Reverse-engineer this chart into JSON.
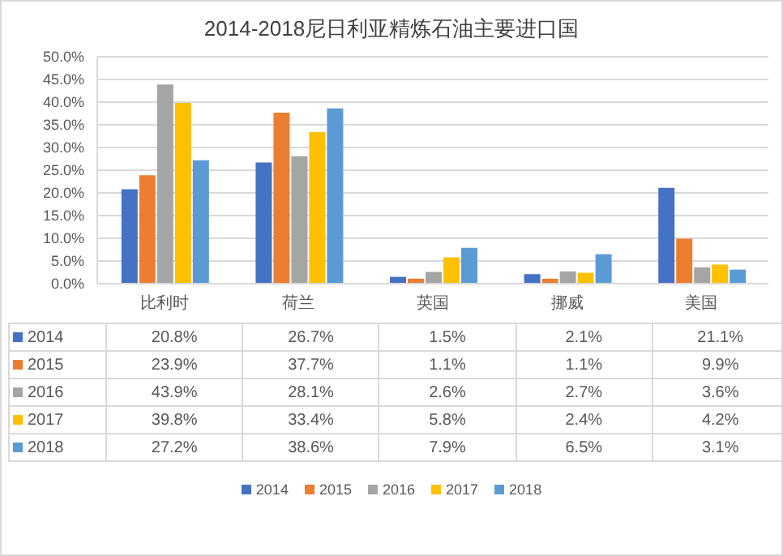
{
  "chart_data": {
    "type": "bar",
    "title": "2014-2018尼日利亚精炼石油主要进口国",
    "categories": [
      "比利时",
      "荷兰",
      "英国",
      "挪威",
      "美国"
    ],
    "series": [
      {
        "name": "2014",
        "color": "#4472c4",
        "values": [
          20.8,
          26.7,
          1.5,
          2.1,
          21.1
        ],
        "value_labels": [
          "20.8%",
          "26.7%",
          "1.5%",
          "2.1%",
          "21.1%"
        ]
      },
      {
        "name": "2015",
        "color": "#ed7d31",
        "values": [
          23.9,
          37.7,
          1.1,
          1.1,
          9.9
        ],
        "value_labels": [
          "23.9%",
          "37.7%",
          "1.1%",
          "1.1%",
          "9.9%"
        ]
      },
      {
        "name": "2016",
        "color": "#a5a5a5",
        "values": [
          43.9,
          28.1,
          2.6,
          2.7,
          3.6
        ],
        "value_labels": [
          "43.9%",
          "28.1%",
          "2.6%",
          "2.7%",
          "3.6%"
        ]
      },
      {
        "name": "2017",
        "color": "#ffc000",
        "values": [
          39.8,
          33.4,
          5.8,
          2.4,
          4.2
        ],
        "value_labels": [
          "39.8%",
          "33.4%",
          "5.8%",
          "2.4%",
          "4.2%"
        ]
      },
      {
        "name": "2018",
        "color": "#5b9bd5",
        "values": [
          27.2,
          38.6,
          7.9,
          6.5,
          3.1
        ],
        "value_labels": [
          "27.2%",
          "38.6%",
          "7.9%",
          "6.5%",
          "3.1%"
        ]
      }
    ],
    "ylim": [
      0,
      50
    ],
    "yticks": [
      {
        "value": 0,
        "label": "0.0%"
      },
      {
        "value": 5,
        "label": "5.0%"
      },
      {
        "value": 10,
        "label": "10.0%"
      },
      {
        "value": 15,
        "label": "15.0%"
      },
      {
        "value": 20,
        "label": "20.0%"
      },
      {
        "value": 25,
        "label": "25.0%"
      },
      {
        "value": 30,
        "label": "30.0%"
      },
      {
        "value": 35,
        "label": "35.0%"
      },
      {
        "value": 40,
        "label": "40.0%"
      },
      {
        "value": 45,
        "label": "45.0%"
      },
      {
        "value": 50,
        "label": "50.0%"
      }
    ],
    "grid": "y",
    "legend": "bottom"
  }
}
